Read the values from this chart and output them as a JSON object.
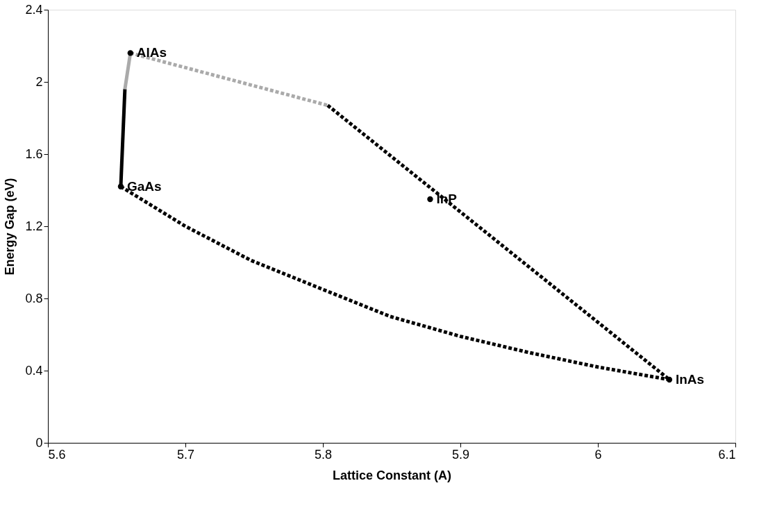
{
  "chart_data": {
    "type": "line",
    "xlabel": "Lattice Constant (A)",
    "ylabel": "Energy Gap (eV)",
    "xlim": [
      5.6,
      6.1
    ],
    "ylim": [
      0,
      2.4
    ],
    "xticks": [
      5.6,
      5.7,
      5.8,
      5.9,
      6,
      6.1
    ],
    "yticks": [
      0,
      0.4,
      0.8,
      1.2,
      1.6,
      2,
      2.4
    ],
    "grid": false,
    "series": [
      {
        "color": "#000000",
        "line_style": "solid",
        "x": [
          5.653,
          5.656
        ],
        "values": [
          1.42,
          1.96
        ]
      },
      {
        "color": "#aaaaaa",
        "line_style": "solid",
        "x": [
          5.656,
          5.66
        ],
        "values": [
          1.96,
          2.16
        ]
      },
      {
        "color": "#aaaaaa",
        "line_style": "dotted",
        "x": [
          5.66,
          5.8035
        ],
        "values": [
          2.16,
          1.87
        ]
      },
      {
        "color": "#000000",
        "line_style": "dotted",
        "x": [
          5.8035,
          6.052
        ],
        "values": [
          1.87,
          0.35
        ]
      },
      {
        "color": "#000000",
        "line_style": "dotted",
        "x": [
          5.653,
          5.7,
          5.748,
          5.8,
          5.849,
          5.9,
          5.95,
          6.0,
          6.052
        ],
        "values": [
          1.42,
          1.2,
          1.01,
          0.85,
          0.7,
          0.59,
          0.5,
          0.42,
          0.35
        ]
      },
      {
        "type": "scatter",
        "color": "#000000",
        "marker": "circle",
        "x": [
          5.653,
          5.66,
          5.878,
          6.052
        ],
        "values": [
          1.42,
          2.16,
          1.35,
          0.35
        ]
      }
    ],
    "annotations": [
      {
        "text": "AlAs",
        "x": 5.66,
        "y": 2.16
      },
      {
        "text": "GaAs",
        "x": 5.653,
        "y": 1.42
      },
      {
        "text": "InP",
        "x": 5.878,
        "y": 1.35
      },
      {
        "text": "InAs",
        "x": 6.052,
        "y": 0.35
      }
    ]
  }
}
